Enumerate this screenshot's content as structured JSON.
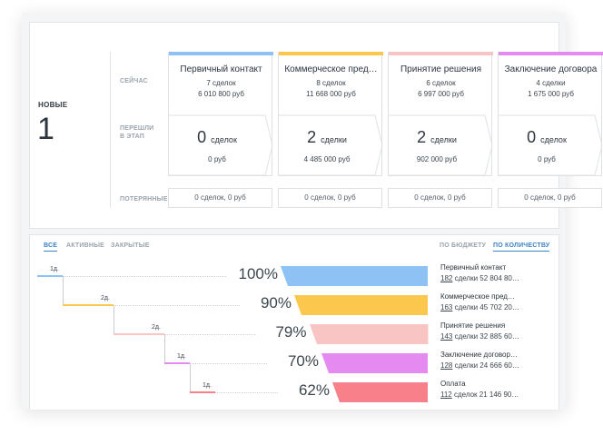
{
  "summary": {
    "new_label": "НОВЫЕ",
    "new_count": "1"
  },
  "row_labels": {
    "now": "СЕЙЧАС",
    "moved_l1": "ПЕРЕШЛИ",
    "moved_l2": "В ЭТАП",
    "lost": "ПОТЕРЯННЫЕ"
  },
  "stages": [
    {
      "name": "Первичный контакт",
      "deals": "7 сделок",
      "sum": "6 010 800 руб",
      "moved_num": "0",
      "moved_word": "сделок",
      "moved_sum": "0 руб",
      "lost": "0 сделок, 0 руб",
      "color": "#8ec2f4"
    },
    {
      "name": "Коммерческое пред…",
      "deals": "8 сделок",
      "sum": "11 668 000 руб",
      "moved_num": "2",
      "moved_word": "сделки",
      "moved_sum": "4 485 000 руб",
      "lost": "0 сделок, 0 руб",
      "color": "#fbc84d"
    },
    {
      "name": "Принятие решения",
      "deals": "6 сделок",
      "sum": "6 997 000 руб",
      "moved_num": "2",
      "moved_word": "сделки",
      "moved_sum": "902 000 руб",
      "lost": "0 сделок, 0 руб",
      "color": "#f9c4c4"
    },
    {
      "name": "Заключение договора",
      "deals": "4 сделки",
      "sum": "1 675 000 руб",
      "moved_num": "0",
      "moved_word": "сделок",
      "moved_sum": "0 руб",
      "lost": "0 сделок, 0 руб",
      "color": "#e48af0"
    }
  ],
  "tabs": {
    "all": "ВСЕ",
    "active": "АКТИВНЫЕ",
    "closed": "ЗАКРЫТЫЕ"
  },
  "modes": {
    "budget": "ПО БЮДЖЕТУ",
    "count": "ПО КОЛИЧЕСТВУ"
  },
  "funnel": [
    {
      "days": "1д.",
      "pct": "100%",
      "fill": 1.0,
      "color": "#8ec2f4",
      "name": "Первичный контакт",
      "count": "182",
      "rest": " сделки 52 804 80…"
    },
    {
      "days": "2д.",
      "pct": "90%",
      "fill": 0.9,
      "color": "#fbc84d",
      "name": "Коммерческое пред…",
      "count": "163",
      "rest": " сделки 45 702 20…"
    },
    {
      "days": "2д.",
      "pct": "79%",
      "fill": 0.79,
      "color": "#f9c4c4",
      "name": "Принятие решения",
      "count": "143",
      "rest": " сделки 32 885 60…"
    },
    {
      "days": "1д.",
      "pct": "70%",
      "fill": 0.7,
      "color": "#e48af0",
      "name": "Заключение договор…",
      "count": "128",
      "rest": " сделки 24 666 60…"
    },
    {
      "days": "1д.",
      "pct": "62%",
      "fill": 0.62,
      "color": "#f8808a",
      "name": "Оплата",
      "count": "112",
      "rest": " сделок 21 146 90…"
    }
  ]
}
